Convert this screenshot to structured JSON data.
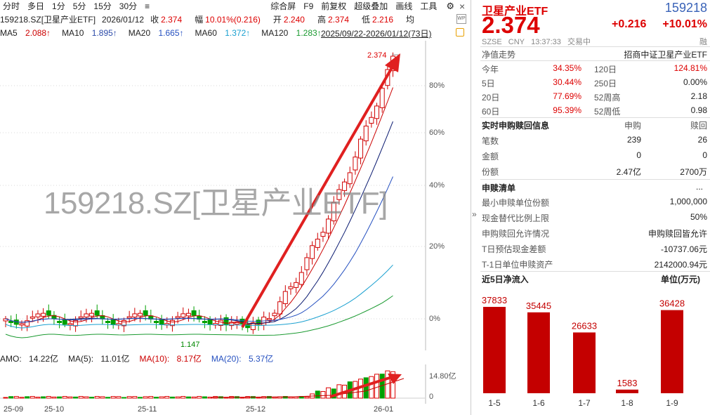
{
  "toolbar": {
    "items": [
      "分时",
      "多日",
      "1分",
      "5分",
      "15分",
      "30分"
    ],
    "more": "≡",
    "right_items": [
      "综合屏",
      "F9",
      "前复权",
      "超级叠加",
      "画线",
      "工具"
    ],
    "gear": "⚙",
    "close": "×"
  },
  "info": {
    "name": "159218.SZ[卫星产业ETF]",
    "date": "2026/01/12",
    "close_label": "收",
    "close": "2.374",
    "amp_label": "幅",
    "amp": "10.01%(0.216)",
    "open_label": "开",
    "open": "2.240",
    "high_label": "高",
    "high": "2.374",
    "low_label": "低",
    "low": "2.216",
    "avg_label": "均",
    "wp": "WP"
  },
  "ma": {
    "ma5_label": "MA5",
    "ma5": "2.088↑",
    "ma10_label": "MA10",
    "ma10": "1.895↑",
    "ma20_label": "MA20",
    "ma20": "1.665↑",
    "ma60_label": "MA60",
    "ma60": "1.372↑",
    "ma120_label": "MA120",
    "ma120": "1.283↑",
    "range": "2025/09/22-2026/01/12(73日)"
  },
  "watermark": "159218.SZ[卫星产业ETF]",
  "price_axis": [
    "80%",
    "60%",
    "40%",
    "20%",
    "0%"
  ],
  "high_label": "2.374",
  "low_label": "1.147",
  "amo": {
    "amo_label": "AMO:",
    "amo": "14.22亿",
    "ma5_label": "MA(5):",
    "ma5": "11.01亿",
    "ma10_label": "MA(10):",
    "ma10": "8.17亿",
    "ma20_label": "MA(20):",
    "ma20": "5.37亿",
    "axis_top": "14.80亿",
    "axis_zero": "0"
  },
  "xaxis": [
    "25-09",
    "25-10",
    "25-11",
    "25-12",
    "26-01"
  ],
  "colors": {
    "up": "#d00000",
    "down": "#00a000",
    "ma5": "#cc0000",
    "ma10": "#0a1a70",
    "ma20": "#2550c0",
    "ma60": "#1aa0d0",
    "ma120": "#1a9a30"
  },
  "panel": {
    "name": "卫星产业ETF",
    "code": "159218",
    "price": "2.374",
    "change": "+0.216",
    "change_pct": "+10.01%",
    "exchange": "SZSE",
    "currency": "CNY",
    "time": "13:37:33",
    "status": "交易中",
    "rong": "融",
    "nav_label": "净值走势",
    "index_name": "招商中证卫星产业ETF",
    "perf": [
      {
        "l1": "今年",
        "v1": "34.35%",
        "l2": "120日",
        "v2": "124.81%"
      },
      {
        "l1": "5日",
        "v1": "30.44%",
        "l2": "250日",
        "v2": "0.00%"
      },
      {
        "l1": "20日",
        "v1": "77.69%",
        "l2": "52周高",
        "v2": "2.18"
      },
      {
        "l1": "60日",
        "v1": "95.39%",
        "l2": "52周低",
        "v2": "0.98"
      }
    ],
    "realtime": {
      "title": "实时申购赎回信息",
      "col1": "申购",
      "col2": "赎回",
      "rows": [
        {
          "label": "笔数",
          "a": "239",
          "b": "26"
        },
        {
          "label": "金额",
          "a": "0",
          "b": "0"
        },
        {
          "label": "份额",
          "a": "2.47亿",
          "b": "2700万"
        }
      ]
    },
    "list": {
      "title": "申赎清单",
      "more": "...",
      "rows": [
        {
          "label": "最小申赎单位份额",
          "value": "1,000,000"
        },
        {
          "label": "现金替代比例上限",
          "value": "50%"
        },
        {
          "label": "申购赎回允许情况",
          "value": "申购赎回皆允许"
        },
        {
          "label": "T日预估现金差额",
          "value": "-10737.06元"
        },
        {
          "label": "T-1日单位申赎资产",
          "value": "2142000.94元"
        }
      ]
    },
    "flow": {
      "title": "近5日净流入",
      "unit": "单位(万元)",
      "categories": [
        "1-5",
        "1-6",
        "1-7",
        "1-8",
        "1-9"
      ],
      "values": [
        37833,
        35445,
        26633,
        1583,
        36428
      ],
      "labels": [
        "37833",
        "35445",
        "26633",
        "1583",
        "36428"
      ]
    }
  },
  "collapse_arrow": "»"
}
